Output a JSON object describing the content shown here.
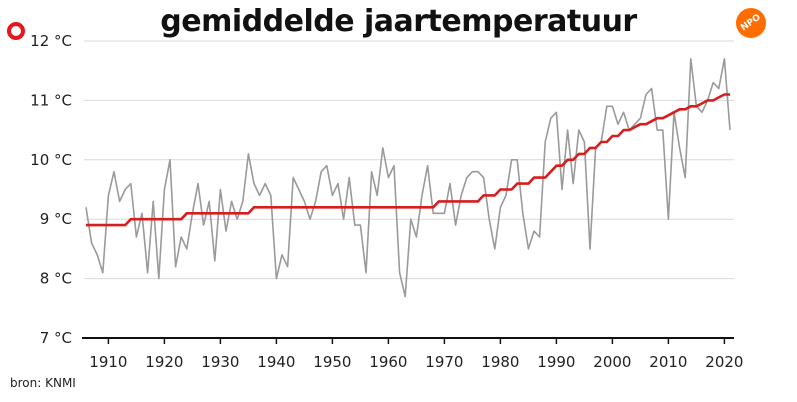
{
  "header": {
    "title": "gemiddelde jaartemperatuur",
    "brand": "NPO"
  },
  "source": "bron: KNMI",
  "colors": {
    "observed": "#9a9a9a",
    "trend": "#d51f1f",
    "grid": "#d9d9d9",
    "axis": "#111111",
    "accent": "#e8141e"
  },
  "chart_data": {
    "type": "line",
    "title": "gemiddelde jaartemperatuur",
    "xlabel": "",
    "ylabel": "",
    "xlim": [
      1906,
      2021
    ],
    "ylim": [
      7,
      12
    ],
    "x_ticks": [
      1910,
      1920,
      1930,
      1940,
      1950,
      1960,
      1970,
      1980,
      1990,
      2000,
      2010,
      2020
    ],
    "y_ticks": [
      {
        "value": 7,
        "label": "7 °C"
      },
      {
        "value": 8,
        "label": "8 °C"
      },
      {
        "value": 9,
        "label": "9 °C"
      },
      {
        "value": 10,
        "label": "10 °C"
      },
      {
        "value": 11,
        "label": "11 °C"
      },
      {
        "value": 12,
        "label": "12 °C"
      }
    ],
    "grid": true,
    "series": [
      {
        "x": [
          1906,
          1907,
          1908,
          1909,
          1910,
          1911,
          1912,
          1913,
          1914,
          1915,
          1916,
          1917,
          1918,
          1919,
          1920,
          1921,
          1922,
          1923,
          1924,
          1925,
          1926,
          1927,
          1928,
          1929,
          1930,
          1931,
          1932,
          1933,
          1934,
          1935,
          1936,
          1937,
          1938,
          1939,
          1940,
          1941,
          1942,
          1943,
          1944,
          1945,
          1946,
          1947,
          1948,
          1949,
          1950,
          1951,
          1952,
          1953,
          1954,
          1955,
          1956,
          1957,
          1958,
          1959,
          1960,
          1961,
          1962,
          1963,
          1964,
          1965,
          1966,
          1967,
          1968,
          1969,
          1970,
          1971,
          1972,
          1973,
          1974,
          1975,
          1976,
          1977,
          1978,
          1979,
          1980,
          1981,
          1982,
          1983,
          1984,
          1985,
          1986,
          1987,
          1988,
          1989,
          1990,
          1991,
          1992,
          1993,
          1994,
          1995,
          1996,
          1997,
          1998,
          1999,
          2000,
          2001,
          2002,
          2003,
          2004,
          2005,
          2006,
          2007,
          2008,
          2009,
          2010,
          2011,
          2012,
          2013,
          2014,
          2015,
          2016,
          2017,
          2018,
          2019,
          2020,
          2021
        ],
        "values": [
          9.2,
          8.6,
          8.4,
          8.1,
          9.4,
          9.8,
          9.3,
          9.5,
          9.6,
          8.7,
          9.1,
          8.1,
          9.3,
          8.0,
          9.5,
          10.0,
          8.2,
          8.7,
          8.5,
          9.1,
          9.6,
          8.9,
          9.3,
          8.3,
          9.5,
          8.8,
          9.3,
          9.0,
          9.3,
          10.1,
          9.6,
          9.4,
          9.6,
          9.4,
          8.0,
          8.4,
          8.2,
          9.7,
          9.5,
          9.3,
          9.0,
          9.3,
          9.8,
          9.9,
          9.4,
          9.6,
          9.0,
          9.7,
          8.9,
          8.9,
          8.1,
          9.8,
          9.4,
          10.2,
          9.7,
          9.9,
          8.1,
          7.7,
          9.0,
          8.7,
          9.4,
          9.9,
          9.1,
          9.1,
          9.1,
          9.6,
          8.9,
          9.4,
          9.7,
          9.8,
          9.8,
          9.7,
          9.0,
          8.5,
          9.2,
          9.4,
          10.0,
          10.0,
          9.1,
          8.5,
          8.8,
          8.7,
          10.3,
          10.7,
          10.8,
          9.5,
          10.5,
          9.6,
          10.5,
          10.3,
          8.5,
          10.2,
          10.3,
          10.9,
          10.9,
          10.6,
          10.8,
          10.5,
          10.6,
          10.7,
          11.1,
          11.2,
          10.5,
          10.5,
          9.0,
          10.8,
          10.2,
          9.7,
          11.7,
          10.9,
          10.8,
          11.0,
          11.3,
          11.2,
          11.7,
          10.5
        ]
      },
      {
        "x": [
          1906,
          1913,
          1914,
          1923,
          1924,
          1935,
          1936,
          1968,
          1969,
          1976,
          1977,
          1979,
          1980,
          1982,
          1983,
          1985,
          1986,
          1988,
          1989,
          1990,
          1991,
          1992,
          1993,
          1994,
          1995,
          1996,
          1997,
          1998,
          1999,
          2000,
          2001,
          2002,
          2003,
          2004,
          2005,
          2006,
          2007,
          2008,
          2009,
          2010,
          2011,
          2012,
          2013,
          2014,
          2015,
          2016,
          2017,
          2018,
          2019,
          2020,
          2021
        ],
        "values": [
          8.9,
          8.9,
          9.0,
          9.0,
          9.1,
          9.1,
          9.2,
          9.2,
          9.3,
          9.3,
          9.4,
          9.4,
          9.5,
          9.5,
          9.6,
          9.6,
          9.7,
          9.7,
          9.8,
          9.9,
          9.9,
          10.0,
          10.0,
          10.1,
          10.1,
          10.2,
          10.2,
          10.3,
          10.3,
          10.4,
          10.4,
          10.5,
          10.5,
          10.55,
          10.6,
          10.6,
          10.65,
          10.7,
          10.7,
          10.75,
          10.8,
          10.85,
          10.85,
          10.9,
          10.9,
          10.95,
          11.0,
          11.0,
          11.05,
          11.1,
          11.1
        ]
      }
    ]
  }
}
